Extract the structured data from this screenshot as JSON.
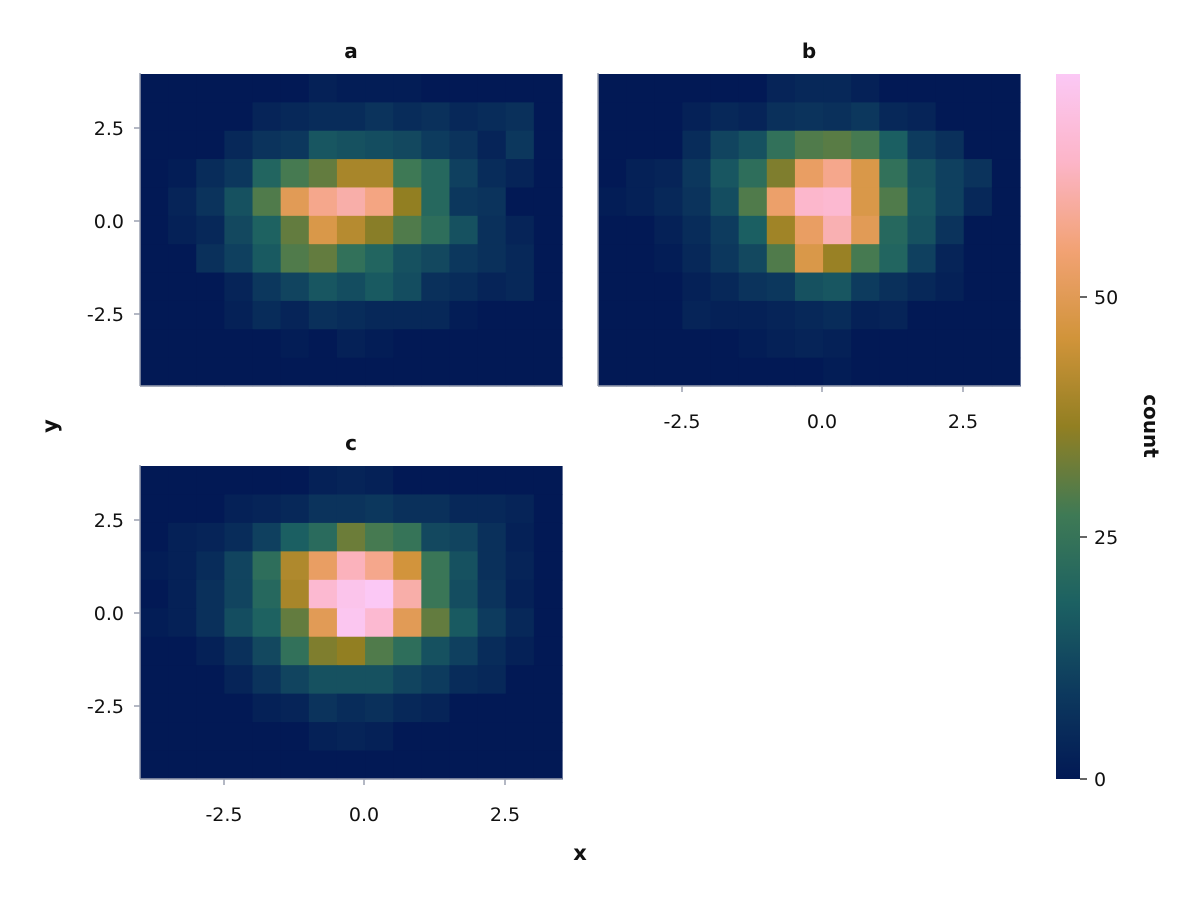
{
  "chart_data": {
    "type": "heatmap",
    "xlabel": "x",
    "ylabel": "y",
    "xlim": [
      -3.9,
      3.5
    ],
    "ylim": [
      -4.5,
      3.9
    ],
    "x_ticks": [
      "-2.5",
      "0.0",
      "2.5"
    ],
    "y_ticks": [
      "2.5",
      "0.0",
      "-2.5"
    ],
    "colorbar": {
      "label": "count",
      "range": [
        0,
        70
      ],
      "ticks": [
        "0",
        "25",
        "50"
      ],
      "colors": [
        "#021955",
        "#0d3a5e",
        "#1c6162",
        "#3f7a55",
        "#927f22",
        "#d1943a",
        "#f2a274",
        "#fcb5c8",
        "#fbc8f5"
      ]
    },
    "panels": [
      {
        "title": "a",
        "rows": [
          [
            0,
            0,
            0,
            0,
            0,
            0,
            2,
            1,
            1,
            1,
            0,
            0,
            0,
            0,
            0
          ],
          [
            0,
            0,
            0,
            0,
            3,
            4,
            5,
            5,
            7,
            5,
            6,
            4,
            5,
            6,
            0
          ],
          [
            0,
            0,
            0,
            4,
            7,
            8,
            15,
            14,
            13,
            12,
            9,
            7,
            3,
            8,
            0
          ],
          [
            0,
            1,
            5,
            8,
            19,
            27,
            30,
            38,
            38,
            26,
            20,
            10,
            5,
            3,
            0
          ],
          [
            0,
            3,
            7,
            14,
            28,
            48,
            55,
            58,
            54,
            35,
            20,
            8,
            7,
            0,
            0
          ],
          [
            0,
            2,
            4,
            12,
            18,
            30,
            46,
            40,
            34,
            28,
            22,
            14,
            6,
            3,
            0
          ],
          [
            0,
            0,
            6,
            10,
            16,
            28,
            30,
            23,
            19,
            14,
            12,
            8,
            6,
            4,
            0
          ],
          [
            0,
            0,
            0,
            3,
            8,
            11,
            15,
            13,
            16,
            13,
            6,
            5,
            3,
            4,
            0
          ],
          [
            0,
            0,
            0,
            2,
            5,
            3,
            6,
            5,
            4,
            4,
            4,
            1,
            0,
            0,
            0
          ],
          [
            0,
            0,
            0,
            0,
            0,
            1,
            0,
            2,
            1,
            0,
            0,
            0,
            0,
            0,
            0
          ],
          [
            0,
            0,
            0,
            0,
            0,
            0,
            0,
            0,
            0,
            0,
            0,
            0,
            0,
            0,
            0
          ]
        ]
      },
      {
        "title": "b",
        "rows": [
          [
            0,
            0,
            0,
            0,
            0,
            0,
            3,
            4,
            4,
            2,
            0,
            0,
            0,
            0,
            0
          ],
          [
            0,
            0,
            0,
            2,
            4,
            3,
            6,
            7,
            6,
            8,
            4,
            3,
            0,
            0,
            0
          ],
          [
            0,
            0,
            0,
            5,
            11,
            14,
            23,
            28,
            29,
            27,
            17,
            9,
            6,
            0,
            0
          ],
          [
            0,
            2,
            3,
            8,
            15,
            22,
            33,
            50,
            55,
            46,
            23,
            14,
            10,
            7,
            0
          ],
          [
            1,
            2,
            4,
            7,
            13,
            28,
            51,
            62,
            63,
            46,
            28,
            15,
            10,
            4,
            0
          ],
          [
            0,
            0,
            2,
            5,
            9,
            17,
            37,
            50,
            59,
            48,
            20,
            14,
            7,
            0,
            0
          ],
          [
            0,
            0,
            1,
            4,
            8,
            12,
            28,
            46,
            36,
            27,
            19,
            10,
            3,
            0,
            0
          ],
          [
            0,
            0,
            0,
            2,
            4,
            7,
            8,
            14,
            15,
            9,
            6,
            4,
            2,
            0,
            0
          ],
          [
            0,
            0,
            0,
            3,
            2,
            2,
            3,
            4,
            5,
            2,
            3,
            0,
            0,
            0,
            0
          ],
          [
            0,
            0,
            0,
            0,
            0,
            1,
            2,
            3,
            2,
            0,
            0,
            0,
            0,
            0,
            0
          ],
          [
            0,
            0,
            0,
            0,
            0,
            0,
            0,
            0,
            1,
            0,
            0,
            0,
            0,
            0,
            0
          ]
        ]
      },
      {
        "title": "c",
        "rows": [
          [
            0,
            0,
            0,
            0,
            0,
            0,
            2,
            3,
            2,
            0,
            0,
            0,
            0,
            0,
            0
          ],
          [
            0,
            0,
            0,
            2,
            3,
            4,
            7,
            7,
            8,
            6,
            6,
            4,
            4,
            3,
            0
          ],
          [
            0,
            2,
            3,
            5,
            10,
            17,
            21,
            31,
            27,
            24,
            12,
            11,
            6,
            2,
            0
          ],
          [
            1,
            2,
            5,
            11,
            22,
            39,
            50,
            60,
            55,
            44,
            25,
            14,
            6,
            3,
            0
          ],
          [
            0,
            2,
            6,
            11,
            20,
            38,
            63,
            68,
            72,
            58,
            25,
            13,
            7,
            2,
            0
          ],
          [
            1,
            2,
            6,
            13,
            18,
            30,
            48,
            69,
            63,
            48,
            30,
            16,
            9,
            4,
            0
          ],
          [
            0,
            0,
            2,
            6,
            12,
            23,
            33,
            35,
            28,
            22,
            14,
            10,
            5,
            2,
            0
          ],
          [
            0,
            0,
            0,
            3,
            7,
            11,
            14,
            14,
            14,
            11,
            9,
            5,
            4,
            0,
            0
          ],
          [
            0,
            0,
            0,
            0,
            2,
            3,
            7,
            5,
            6,
            4,
            3,
            0,
            0,
            0,
            0
          ],
          [
            0,
            0,
            0,
            0,
            0,
            0,
            2,
            3,
            2,
            0,
            0,
            0,
            0,
            0,
            0
          ],
          [
            0,
            0,
            0,
            0,
            0,
            0,
            0,
            0,
            0,
            0,
            0,
            0,
            0,
            0,
            0
          ]
        ]
      }
    ]
  }
}
